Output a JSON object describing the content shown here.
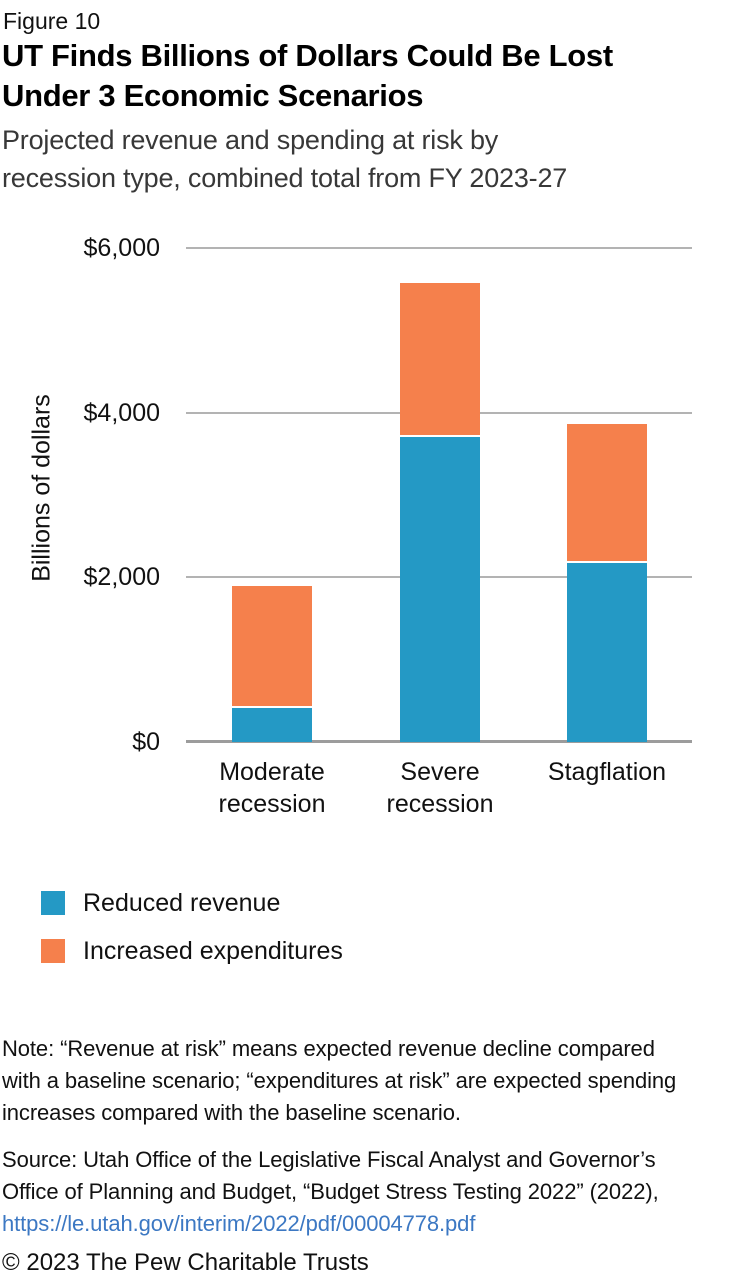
{
  "header": {
    "figure_label": "Figure 10",
    "title_lines": [
      "UT Finds Billions of Dollars Could Be Lost",
      "Under 3 Economic Scenarios"
    ],
    "subtitle_lines": [
      "Projected revenue and spending at risk by",
      "recession type, combined total from FY 2023-27"
    ]
  },
  "chart_data": {
    "type": "bar",
    "stacked": true,
    "title": "UT Finds Billions of Dollars Could Be Lost Under 3 Economic Scenarios",
    "subtitle": "Projected revenue and spending at risk by recession type, combined total from FY 2023-27",
    "ylabel": "Billions of dollars",
    "ylim": [
      0,
      6000
    ],
    "grid": true,
    "legend_position": "bottom-left",
    "categories": [
      [
        "Moderate",
        "recession"
      ],
      [
        "Severe",
        "recession"
      ],
      [
        "Stagflation"
      ]
    ],
    "yticks": [
      {
        "value": 0,
        "label": "$0"
      },
      {
        "value": 2000,
        "label": "$2,000"
      },
      {
        "value": 4000,
        "label": "$4,000"
      },
      {
        "value": 6000,
        "label": "$6,000"
      }
    ],
    "series": [
      {
        "key": "reduced-revenue",
        "name": "Reduced revenue",
        "color": "#2499c5",
        "values": [
          410,
          3710,
          2180
        ]
      },
      {
        "key": "increased-expenditures",
        "name": "Increased expenditures",
        "color": "#f5804c",
        "values": [
          1480,
          1870,
          1690
        ]
      }
    ],
    "totals": [
      1890,
      5580,
      3870
    ]
  },
  "footer": {
    "note_lines": [
      "Note: “Revenue at risk” means expected revenue decline compared",
      "with a baseline scenario; “expenditures at risk” are expected spending",
      "increases compared with the baseline scenario."
    ],
    "source_lines": [
      "Source: Utah Office of the Legislative Fiscal Analyst and Governor’s",
      "Office of Planning and Budget, “Budget Stress Testing 2022” (2022),"
    ],
    "source_link": "https://le.utah.gov/interim/2022/pdf/00004778.pdf",
    "link_color": "#3c78c3",
    "copyright": "© 2023 The Pew Charitable Trusts"
  }
}
